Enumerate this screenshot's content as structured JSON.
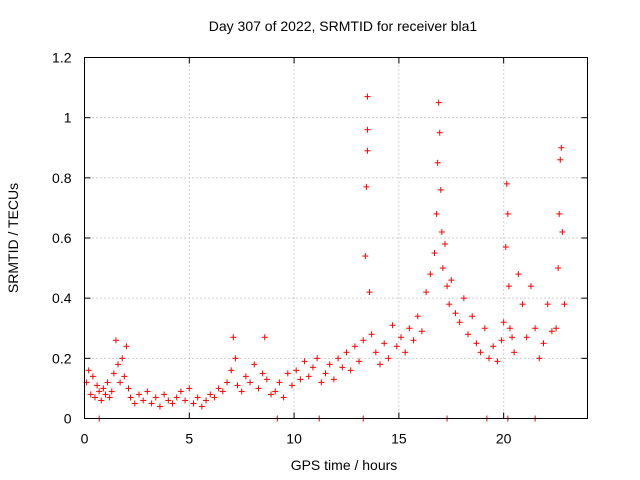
{
  "chart_data": {
    "type": "scatter",
    "title": "Day 307 of 2022, SRMTID for receiver bla1",
    "xlabel": "GPS time / hours",
    "ylabel": "SRMTID / TECUs",
    "xlim": [
      0,
      24
    ],
    "ylim": [
      0,
      1.2
    ],
    "xticks": [
      0,
      5,
      10,
      15,
      20
    ],
    "yticks": [
      0,
      0.2,
      0.4,
      0.6,
      0.8,
      1,
      1.2
    ],
    "xtick_labels": [
      "0",
      "5",
      "10",
      "15",
      "20"
    ],
    "ytick_labels": [
      "0",
      "0.2",
      "0.4",
      "0.6",
      "0.8",
      "1",
      "1.2"
    ],
    "grid": true,
    "marker": "+",
    "color": "#ff0000",
    "series": [
      {
        "name": "SRMTID",
        "x": [
          0.1,
          0.2,
          0.3,
          0.4,
          0.5,
          0.6,
          0.7,
          0.8,
          0.9,
          1.0,
          1.1,
          1.2,
          1.3,
          1.4,
          1.5,
          1.6,
          1.7,
          1.8,
          1.9,
          2.0,
          2.1,
          2.2,
          2.4,
          2.6,
          2.8,
          3.0,
          3.2,
          3.4,
          3.6,
          3.8,
          4.0,
          4.2,
          4.4,
          4.6,
          4.8,
          5.0,
          5.2,
          5.4,
          5.6,
          5.8,
          6.0,
          6.2,
          6.4,
          6.6,
          6.8,
          7.0,
          7.1,
          7.2,
          7.3,
          7.5,
          7.7,
          7.9,
          8.1,
          8.3,
          8.5,
          8.6,
          8.7,
          8.9,
          9.1,
          9.3,
          9.5,
          9.7,
          9.9,
          10.1,
          10.3,
          10.5,
          10.7,
          10.9,
          11.1,
          11.3,
          11.5,
          11.7,
          11.9,
          12.1,
          12.3,
          12.5,
          12.7,
          12.9,
          13.1,
          13.3,
          13.4,
          13.45,
          13.5,
          13.5,
          13.5,
          13.6,
          13.7,
          13.9,
          14.1,
          14.3,
          14.5,
          14.7,
          14.9,
          15.1,
          15.3,
          15.5,
          15.7,
          15.9,
          16.1,
          16.3,
          16.5,
          16.7,
          16.8,
          16.85,
          16.9,
          16.95,
          17.0,
          17.05,
          17.1,
          17.2,
          17.3,
          17.4,
          17.5,
          17.7,
          17.9,
          18.1,
          18.3,
          18.5,
          18.7,
          18.9,
          19.1,
          19.3,
          19.5,
          19.7,
          19.9,
          20.0,
          20.1,
          20.15,
          20.2,
          20.25,
          20.3,
          20.4,
          20.5,
          20.7,
          20.9,
          21.1,
          21.3,
          21.5,
          21.7,
          21.9,
          22.1,
          22.3,
          22.5,
          22.6,
          22.65,
          22.7,
          22.75,
          22.8,
          22.9
        ],
        "y": [
          0.12,
          0.16,
          0.08,
          0.14,
          0.07,
          0.11,
          0.09,
          0.06,
          0.1,
          0.08,
          0.12,
          0.07,
          0.09,
          0.15,
          0.26,
          0.18,
          0.12,
          0.2,
          0.14,
          0.24,
          0.1,
          0.07,
          0.05,
          0.08,
          0.06,
          0.09,
          0.05,
          0.07,
          0.04,
          0.08,
          0.06,
          0.05,
          0.07,
          0.09,
          0.06,
          0.1,
          0.05,
          0.07,
          0.04,
          0.06,
          0.08,
          0.07,
          0.1,
          0.09,
          0.12,
          0.16,
          0.27,
          0.2,
          0.11,
          0.09,
          0.14,
          0.12,
          0.18,
          0.1,
          0.15,
          0.27,
          0.13,
          0.08,
          0.09,
          0.12,
          0.07,
          0.15,
          0.11,
          0.16,
          0.13,
          0.19,
          0.14,
          0.17,
          0.2,
          0.12,
          0.15,
          0.18,
          0.13,
          0.2,
          0.17,
          0.22,
          0.16,
          0.24,
          0.19,
          0.26,
          0.54,
          0.77,
          0.96,
          1.07,
          0.89,
          0.42,
          0.28,
          0.22,
          0.18,
          0.25,
          0.2,
          0.31,
          0.24,
          0.27,
          0.22,
          0.3,
          0.26,
          0.34,
          0.29,
          0.42,
          0.48,
          0.55,
          0.68,
          0.85,
          1.05,
          0.95,
          0.76,
          0.62,
          0.5,
          0.58,
          0.44,
          0.38,
          0.46,
          0.35,
          0.32,
          0.4,
          0.28,
          0.34,
          0.25,
          0.22,
          0.3,
          0.2,
          0.24,
          0.19,
          0.26,
          0.32,
          0.57,
          0.78,
          0.68,
          0.44,
          0.3,
          0.27,
          0.22,
          0.48,
          0.38,
          0.27,
          0.44,
          0.3,
          0.2,
          0.25,
          0.38,
          0.29,
          0.3,
          0.5,
          0.68,
          0.86,
          0.9,
          0.62,
          0.38
        ],
        "zero_markers_x": [
          0.7,
          9.2,
          11.2,
          13.3,
          17.3,
          19.2,
          20.2,
          21.5
        ]
      }
    ]
  }
}
